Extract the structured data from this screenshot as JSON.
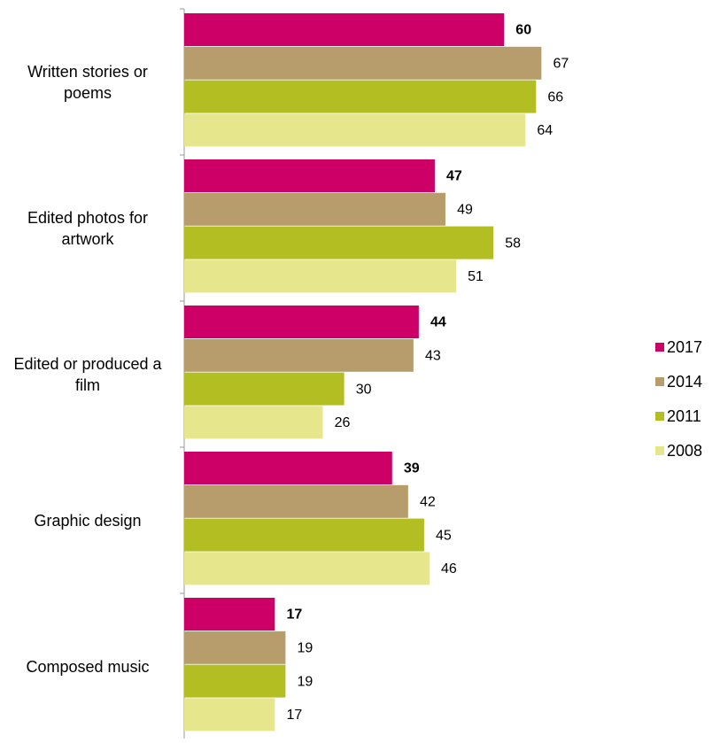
{
  "chart_data": {
    "type": "bar",
    "orientation": "horizontal",
    "categories": [
      "Written stories or poems",
      "Edited photos for artwork",
      "Edited or produced a film",
      "Graphic design",
      "Composed music"
    ],
    "series": [
      {
        "name": "2017",
        "color": "#cc0066",
        "values": [
          60,
          47,
          44,
          39,
          17
        ]
      },
      {
        "name": "2014",
        "color": "#b89d6c",
        "values": [
          67,
          49,
          43,
          42,
          19
        ]
      },
      {
        "name": "2011",
        "color": "#b2be22",
        "values": [
          66,
          58,
          30,
          45,
          19
        ]
      },
      {
        "name": "2008",
        "color": "#e6e68c",
        "values": [
          64,
          51,
          26,
          46,
          17
        ]
      }
    ],
    "legend": "right"
  }
}
